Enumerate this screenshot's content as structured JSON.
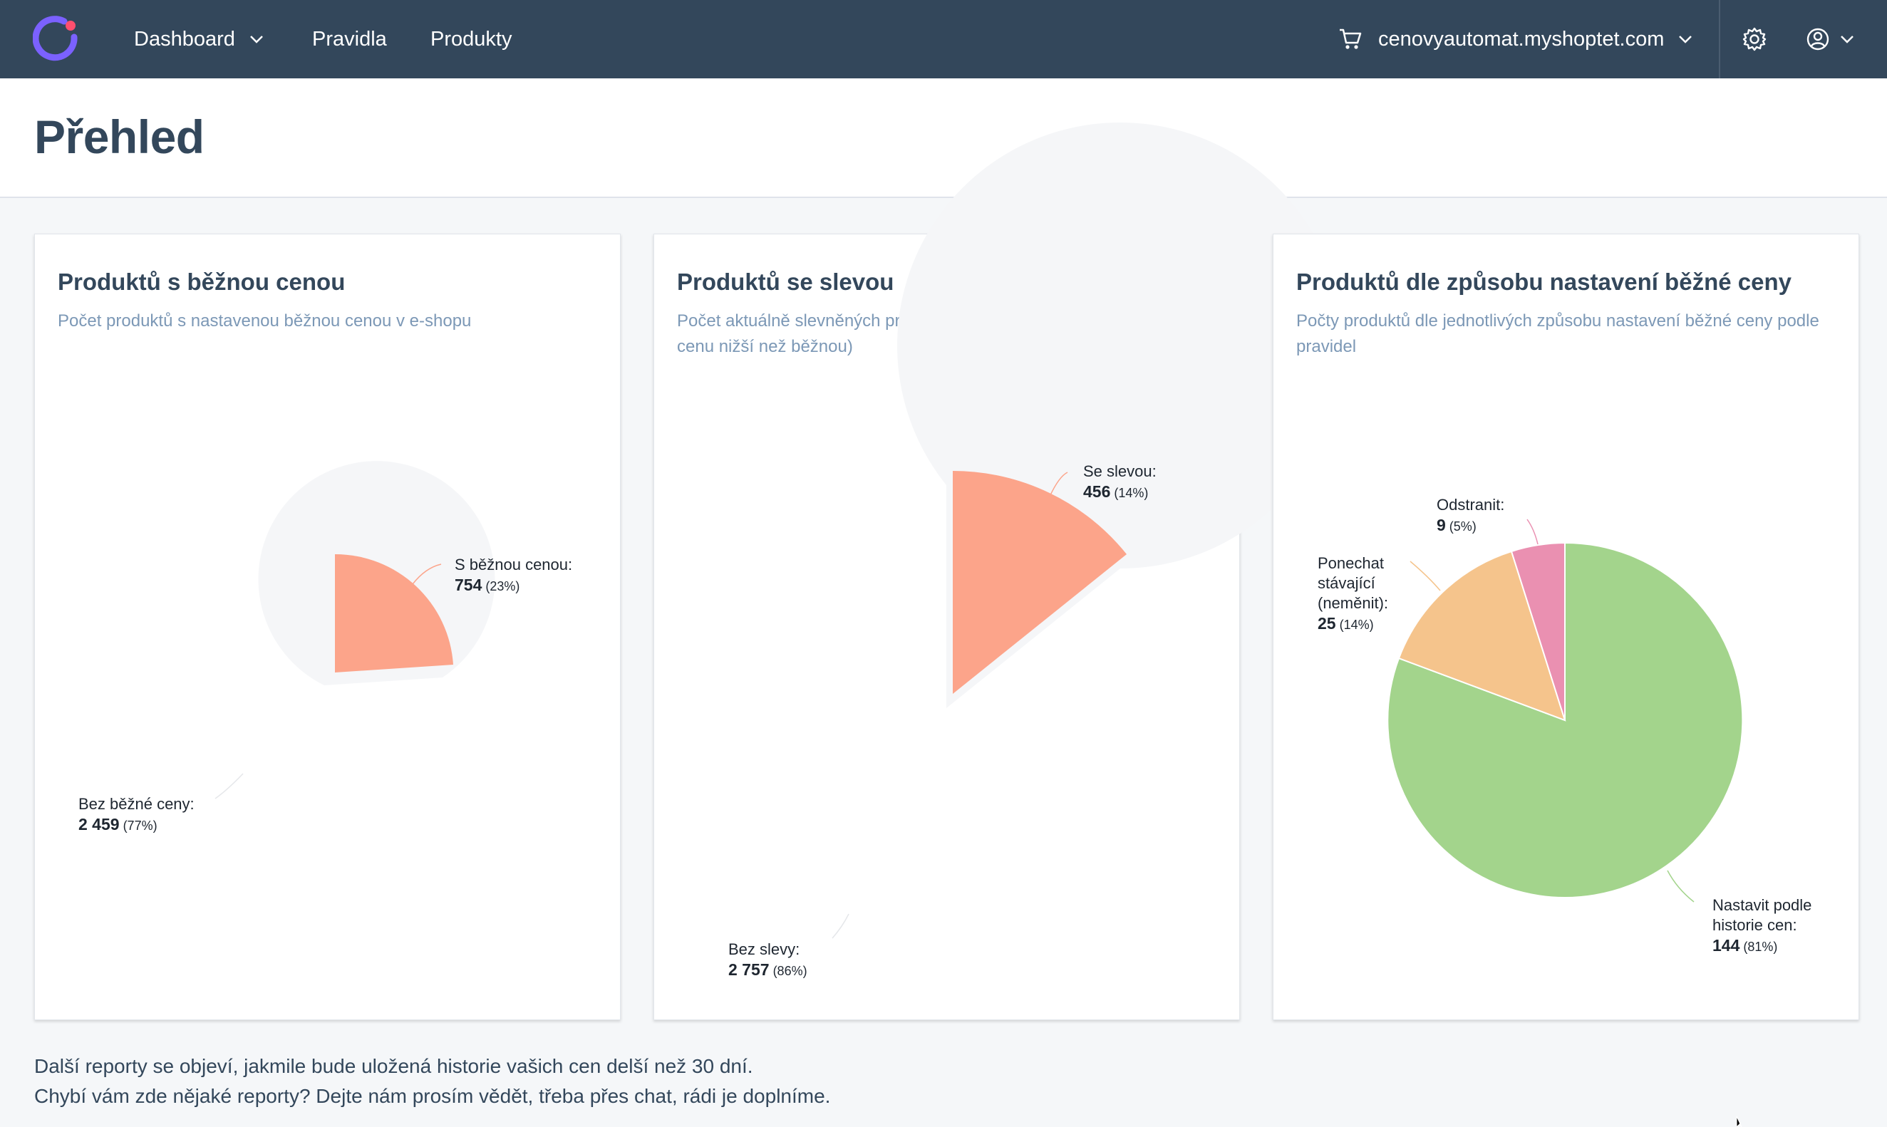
{
  "nav": {
    "dashboard": "Dashboard",
    "pravidla": "Pravidla",
    "produkty": "Produkty",
    "shop": "cenovyautomat.myshoptet.com"
  },
  "page": {
    "title": "Přehled"
  },
  "cards": [
    {
      "title": "Produktů s běžnou cenou",
      "subtitle": "Počet produktů s nastavenou běžnou cenou v e-shopu"
    },
    {
      "title": "Produktů se slevou",
      "subtitle": "Počet aktuálně slevněných produktů v e-shopu (které mají prodejní cenu nižší než běžnou)"
    },
    {
      "title": "Produktů dle způsobu nastavení běžné ceny",
      "subtitle": "Počty produktů dle jednotlivých způsobu nastavení běžné ceny podle pravidel"
    }
  ],
  "chart_data": [
    {
      "type": "pie",
      "slices": [
        {
          "label": "S běžnou cenou:",
          "value": 754,
          "value_text": "754",
          "percent": "(23%)",
          "color": "#fca48a"
        },
        {
          "label": "Bez běžné ceny:",
          "value": 2459,
          "value_text": "2 459",
          "percent": "(77%)",
          "color": "#f5f6f8"
        }
      ]
    },
    {
      "type": "pie",
      "slices": [
        {
          "label": "Se slevou:",
          "value": 456,
          "value_text": "456",
          "percent": "(14%)",
          "color": "#fca48a"
        },
        {
          "label": "Bez slevy:",
          "value": 2757,
          "value_text": "2 757",
          "percent": "(86%)",
          "color": "#f5f6f8"
        }
      ]
    },
    {
      "type": "pie",
      "slices": [
        {
          "label": "Nastavit podle historie cen:",
          "value": 144,
          "value_text": "144",
          "percent": "(81%)",
          "color": "#a3d48c"
        },
        {
          "label": "Ponechat stávající (neměnit):",
          "value": 25,
          "value_text": "25",
          "percent": "(14%)",
          "color": "#f5c48c"
        },
        {
          "label": "Odstranit:",
          "value": 9,
          "value_text": "9",
          "percent": "(5%)",
          "color": "#ea90b1"
        }
      ]
    }
  ],
  "footer": {
    "line1": "Další reporty se objeví, jakmile bude uložená historie vašich cen delší než 30 dní.",
    "line2": "Chybí vám zde nějaké reporty? Dejte nám prosím vědět, třeba přes chat, rádi je doplníme."
  },
  "colors": {
    "nav_bg": "#33475b",
    "accent": "#fca48a",
    "logo": "#7b61ff",
    "logo_dot": "#ff4f6e"
  },
  "icons": [
    "logo-icon",
    "chevron-down-icon",
    "cart-icon",
    "gear-icon",
    "user-icon"
  ]
}
